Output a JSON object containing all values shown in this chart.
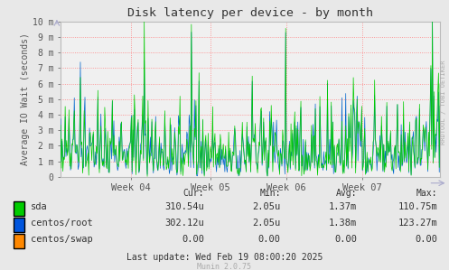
{
  "title": "Disk latency per device - by month",
  "ylabel": "Average IO Wait (seconds)",
  "background_color": "#e8e8e8",
  "plot_bg_color": "#f0f0f0",
  "ytick_labels": [
    "0",
    "1 m",
    "2 m",
    "3 m",
    "4 m",
    "5 m",
    "6 m",
    "7 m",
    "8 m",
    "9 m",
    "10 m"
  ],
  "ytick_values": [
    0,
    0.001,
    0.002,
    0.003,
    0.004,
    0.005,
    0.006,
    0.007,
    0.008,
    0.009,
    0.01
  ],
  "xtick_labels": [
    "Week 04",
    "Week 05",
    "Week 06",
    "Week 07"
  ],
  "legend_items": [
    {
      "label": "sda",
      "color": "#00cc00"
    },
    {
      "label": "centos/root",
      "color": "#0055dd"
    },
    {
      "label": "centos/swap",
      "color": "#ff8800"
    }
  ],
  "table_headers": [
    "Cur:",
    "Min:",
    "Avg:",
    "Max:"
  ],
  "table_data": [
    [
      "310.54u",
      "2.05u",
      "1.37m",
      "110.75m"
    ],
    [
      "302.12u",
      "2.05u",
      "1.38m",
      "123.27m"
    ],
    [
      "0.00",
      "0.00",
      "0.00",
      "0.00"
    ]
  ],
  "last_update": "Last update: Wed Feb 19 08:00:20 2025",
  "munin_version": "Munin 2.0.75",
  "rrdtool_label": "RRDTOOL / TOBI OETIKER",
  "ylim": [
    0,
    0.01
  ],
  "n_points": 500
}
